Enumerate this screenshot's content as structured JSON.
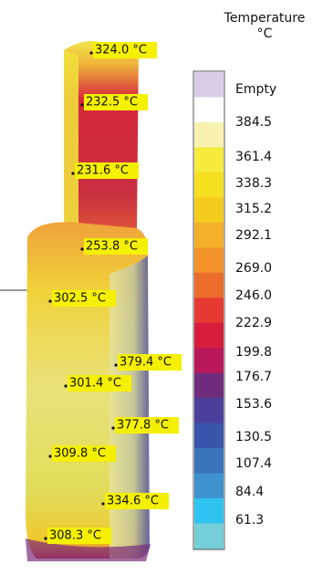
{
  "legend": {
    "title": "Temperature",
    "unit": "°C",
    "labels": [
      "Empty",
      "384.5",
      "361.4",
      "338.3",
      "315.2",
      "292.1",
      "269.0",
      "246.0",
      "222.9",
      "199.8",
      "176.7",
      "153.6",
      "130.5",
      "107.4",
      "84.4",
      "61.3"
    ]
  },
  "annotations": [
    {
      "label": "324.0 °C"
    },
    {
      "label": "232.5 °C"
    },
    {
      "label": "231.6 °C"
    },
    {
      "label": "253.8 °C"
    },
    {
      "label": "302.5 °C"
    },
    {
      "label": "379.4 °C"
    },
    {
      "label": "301.4 °C"
    },
    {
      "label": "377.8 °C"
    },
    {
      "label": "309.8 °C"
    },
    {
      "label": "334.6 °C"
    },
    {
      "label": "308.3 °C"
    }
  ]
}
